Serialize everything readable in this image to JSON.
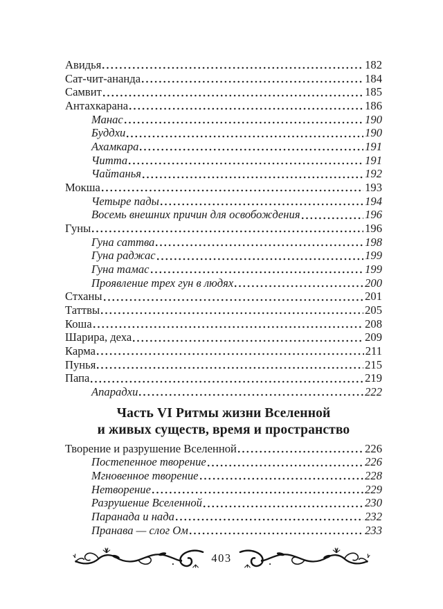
{
  "colors": {
    "text": "#1b1b1b",
    "background": "#ffffff",
    "ornament": "#141414"
  },
  "footer": {
    "page_number": "403",
    "ornament_left_icon": "floral-flourish-left",
    "ornament_right_icon": "floral-flourish-right"
  },
  "toc": {
    "sections": [
      {
        "entries": [
          {
            "label": "Авидья",
            "page": "182",
            "sub": false
          },
          {
            "label": "Сат-чит-ананда",
            "page": "184",
            "sub": false
          },
          {
            "label": "Самвит",
            "page": "185",
            "sub": false
          },
          {
            "label": "Антахкарана",
            "page": "186",
            "sub": false
          },
          {
            "label": "Манас",
            "page": "190",
            "sub": true
          },
          {
            "label": "Буддхи",
            "page": "190",
            "sub": true
          },
          {
            "label": "Ахамкара",
            "page": "191",
            "sub": true
          },
          {
            "label": "Читта",
            "page": "191",
            "sub": true
          },
          {
            "label": "Чайтанья",
            "page": "192",
            "sub": true
          },
          {
            "label": "Мокша",
            "page": "193",
            "sub": false
          },
          {
            "label": "Четыре пады",
            "page": "194",
            "sub": true
          },
          {
            "label": "Восемь внешних причин для освобождения",
            "page": "196",
            "sub": true
          },
          {
            "label": "Гуны",
            "page": "196",
            "sub": false
          },
          {
            "label": "Гуна саттва",
            "page": "198",
            "sub": true
          },
          {
            "label": "Гуна раджас",
            "page": "199",
            "sub": true
          },
          {
            "label": "Гуна тамас",
            "page": "199",
            "sub": true
          },
          {
            "label": "Проявление трех гун в людях",
            "page": "200",
            "sub": true
          },
          {
            "label": "Стханы",
            "page": "201",
            "sub": false
          },
          {
            "label": "Таттвы",
            "page": "205",
            "sub": false
          },
          {
            "label": "Коша",
            "page": "208",
            "sub": false
          },
          {
            "label": "Шарира, деха",
            "page": "209",
            "sub": false
          },
          {
            "label": "Карма",
            "page": "211",
            "sub": false
          },
          {
            "label": "Пунья",
            "page": "215",
            "sub": false
          },
          {
            "label": "Папа",
            "page": "219",
            "sub": false
          },
          {
            "label": "Апарадхи",
            "page": "222",
            "sub": true
          }
        ]
      },
      {
        "heading_lines": [
          "Часть VI Ритмы жизни Вселенной",
          "и живых существ, время и пространство"
        ],
        "entries": [
          {
            "label": "Творение и разрушение Вселенной",
            "page": "226",
            "sub": false
          },
          {
            "label": "Постепенное творение",
            "page": "226",
            "sub": true
          },
          {
            "label": "Мгновенное творение",
            "page": "228",
            "sub": true
          },
          {
            "label": "Нетворение",
            "page": "229",
            "sub": true
          },
          {
            "label": "Разрушение Вселенной",
            "page": "230",
            "sub": true
          },
          {
            "label": "Паранада и нада",
            "page": "232",
            "sub": true
          },
          {
            "label": "Пранава — слог Ом",
            "page": "233",
            "sub": true
          }
        ]
      }
    ]
  }
}
